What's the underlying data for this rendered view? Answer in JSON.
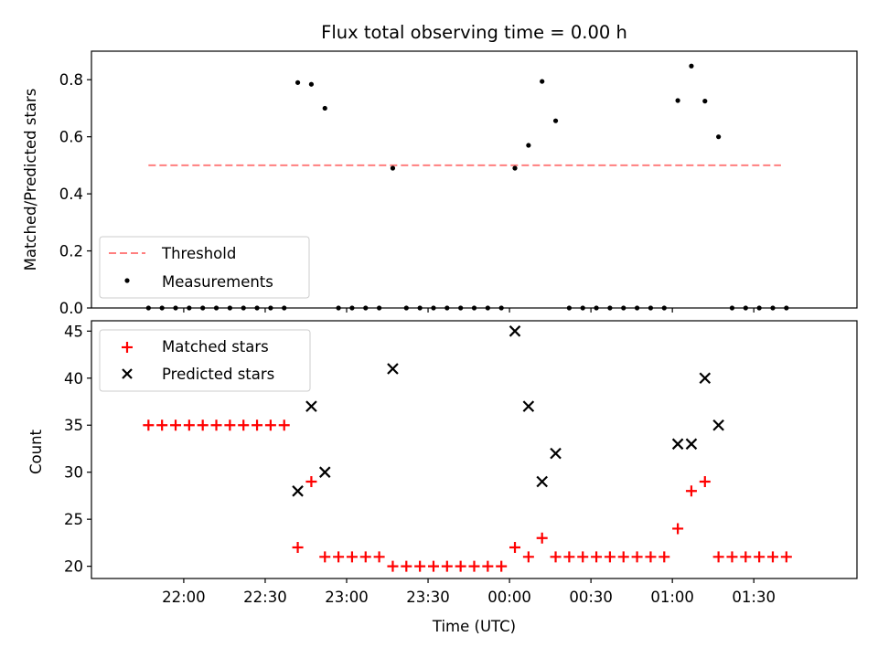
{
  "chart_data": [
    {
      "type": "scatter",
      "title": "Flux total observing time = 0.00 h",
      "xlabel": "",
      "ylabel": "Matched/Predicted stars",
      "ylim": [
        0,
        0.9
      ],
      "xlim": [
        "21:26",
        "02:08"
      ],
      "x_tick_labels": [],
      "y_ticks": [
        0.0,
        0.2,
        0.4,
        0.6,
        0.8
      ],
      "y_tick_labels": [
        "0.0",
        "0.2",
        "0.4",
        "0.6",
        "0.8"
      ],
      "grid": false,
      "legend_placement": "lower-left",
      "threshold": {
        "name": "Threshold",
        "value": 0.5,
        "x_start": "21:47",
        "x_end": "01:40",
        "style": "dashed",
        "color": "#ff7f7f"
      },
      "series": [
        {
          "name": "Measurements",
          "marker": "dot",
          "color": "#000000",
          "points": [
            {
              "x": "21:47",
              "y": 0.0
            },
            {
              "x": "21:52",
              "y": 0.0
            },
            {
              "x": "21:57",
              "y": 0.0
            },
            {
              "x": "22:02",
              "y": 0.0
            },
            {
              "x": "22:07",
              "y": 0.0
            },
            {
              "x": "22:12",
              "y": 0.0
            },
            {
              "x": "22:17",
              "y": 0.0
            },
            {
              "x": "22:22",
              "y": 0.0
            },
            {
              "x": "22:27",
              "y": 0.0
            },
            {
              "x": "22:32",
              "y": 0.0
            },
            {
              "x": "22:37",
              "y": 0.0
            },
            {
              "x": "22:42",
              "y": 0.79
            },
            {
              "x": "22:47",
              "y": 0.784
            },
            {
              "x": "22:52",
              "y": 0.7
            },
            {
              "x": "22:57",
              "y": 0.0
            },
            {
              "x": "23:02",
              "y": 0.0
            },
            {
              "x": "23:07",
              "y": 0.0
            },
            {
              "x": "23:12",
              "y": 0.0
            },
            {
              "x": "23:17",
              "y": 0.49
            },
            {
              "x": "23:22",
              "y": 0.0
            },
            {
              "x": "23:27",
              "y": 0.0
            },
            {
              "x": "23:32",
              "y": 0.0
            },
            {
              "x": "23:37",
              "y": 0.0
            },
            {
              "x": "23:42",
              "y": 0.0
            },
            {
              "x": "23:47",
              "y": 0.0
            },
            {
              "x": "23:52",
              "y": 0.0
            },
            {
              "x": "23:57",
              "y": 0.0
            },
            {
              "x": "00:02",
              "y": 0.49
            },
            {
              "x": "00:07",
              "y": 0.57
            },
            {
              "x": "00:12",
              "y": 0.794
            },
            {
              "x": "00:17",
              "y": 0.656
            },
            {
              "x": "00:22",
              "y": 0.0
            },
            {
              "x": "00:27",
              "y": 0.0
            },
            {
              "x": "00:32",
              "y": 0.0
            },
            {
              "x": "00:37",
              "y": 0.0
            },
            {
              "x": "00:42",
              "y": 0.0
            },
            {
              "x": "00:47",
              "y": 0.0
            },
            {
              "x": "00:52",
              "y": 0.0
            },
            {
              "x": "00:57",
              "y": 0.0
            },
            {
              "x": "01:02",
              "y": 0.727
            },
            {
              "x": "01:07",
              "y": 0.848
            },
            {
              "x": "01:12",
              "y": 0.725
            },
            {
              "x": "01:17",
              "y": 0.6
            },
            {
              "x": "01:22",
              "y": 0.0
            },
            {
              "x": "01:27",
              "y": 0.0
            },
            {
              "x": "01:32",
              "y": 0.0
            },
            {
              "x": "01:37",
              "y": 0.0
            },
            {
              "x": "01:42",
              "y": 0.0
            }
          ]
        }
      ]
    },
    {
      "type": "scatter",
      "title": "",
      "xlabel": "Time (UTC)",
      "ylabel": "Count",
      "ylim": [
        18.7,
        46.1
      ],
      "xlim": [
        "21:26",
        "02:08"
      ],
      "x_ticks": [
        "22:00",
        "22:30",
        "23:00",
        "23:30",
        "00:00",
        "00:30",
        "01:00",
        "01:30"
      ],
      "x_tick_labels": [
        "22:00",
        "22:30",
        "23:00",
        "23:30",
        "00:00",
        "00:30",
        "01:00",
        "01:30"
      ],
      "y_ticks": [
        20,
        25,
        30,
        35,
        40,
        45
      ],
      "y_tick_labels": [
        "20",
        "25",
        "30",
        "35",
        "40",
        "45"
      ],
      "grid": false,
      "legend_placement": "top-left",
      "series": [
        {
          "name": "Matched stars",
          "marker": "plus",
          "color": "#ff0000",
          "points": [
            {
              "x": "21:47",
              "y": 35
            },
            {
              "x": "21:52",
              "y": 35
            },
            {
              "x": "21:57",
              "y": 35
            },
            {
              "x": "22:02",
              "y": 35
            },
            {
              "x": "22:07",
              "y": 35
            },
            {
              "x": "22:12",
              "y": 35
            },
            {
              "x": "22:17",
              "y": 35
            },
            {
              "x": "22:22",
              "y": 35
            },
            {
              "x": "22:27",
              "y": 35
            },
            {
              "x": "22:32",
              "y": 35
            },
            {
              "x": "22:37",
              "y": 35
            },
            {
              "x": "22:42",
              "y": 22
            },
            {
              "x": "22:47",
              "y": 29
            },
            {
              "x": "22:52",
              "y": 21
            },
            {
              "x": "22:57",
              "y": 21
            },
            {
              "x": "23:02",
              "y": 21
            },
            {
              "x": "23:07",
              "y": 21
            },
            {
              "x": "23:12",
              "y": 21
            },
            {
              "x": "23:17",
              "y": 20
            },
            {
              "x": "23:22",
              "y": 20
            },
            {
              "x": "23:27",
              "y": 20
            },
            {
              "x": "23:32",
              "y": 20
            },
            {
              "x": "23:37",
              "y": 20
            },
            {
              "x": "23:42",
              "y": 20
            },
            {
              "x": "23:47",
              "y": 20
            },
            {
              "x": "23:52",
              "y": 20
            },
            {
              "x": "23:57",
              "y": 20
            },
            {
              "x": "00:02",
              "y": 22
            },
            {
              "x": "00:07",
              "y": 21
            },
            {
              "x": "00:12",
              "y": 23
            },
            {
              "x": "00:17",
              "y": 21
            },
            {
              "x": "00:22",
              "y": 21
            },
            {
              "x": "00:27",
              "y": 21
            },
            {
              "x": "00:32",
              "y": 21
            },
            {
              "x": "00:37",
              "y": 21
            },
            {
              "x": "00:42",
              "y": 21
            },
            {
              "x": "00:47",
              "y": 21
            },
            {
              "x": "00:52",
              "y": 21
            },
            {
              "x": "00:57",
              "y": 21
            },
            {
              "x": "01:02",
              "y": 24
            },
            {
              "x": "01:07",
              "y": 28
            },
            {
              "x": "01:12",
              "y": 29
            },
            {
              "x": "01:17",
              "y": 21
            },
            {
              "x": "01:22",
              "y": 21
            },
            {
              "x": "01:27",
              "y": 21
            },
            {
              "x": "01:32",
              "y": 21
            },
            {
              "x": "01:37",
              "y": 21
            },
            {
              "x": "01:42",
              "y": 21
            }
          ]
        },
        {
          "name": "Predicted stars",
          "marker": "x",
          "color": "#000000",
          "points": [
            {
              "x": "22:42",
              "y": 28
            },
            {
              "x": "22:47",
              "y": 37
            },
            {
              "x": "22:52",
              "y": 30
            },
            {
              "x": "23:17",
              "y": 41
            },
            {
              "x": "00:02",
              "y": 45
            },
            {
              "x": "00:07",
              "y": 37
            },
            {
              "x": "00:12",
              "y": 29
            },
            {
              "x": "00:17",
              "y": 32
            },
            {
              "x": "01:02",
              "y": 33
            },
            {
              "x": "01:07",
              "y": 33
            },
            {
              "x": "01:12",
              "y": 40
            },
            {
              "x": "01:17",
              "y": 35
            }
          ]
        }
      ]
    }
  ]
}
